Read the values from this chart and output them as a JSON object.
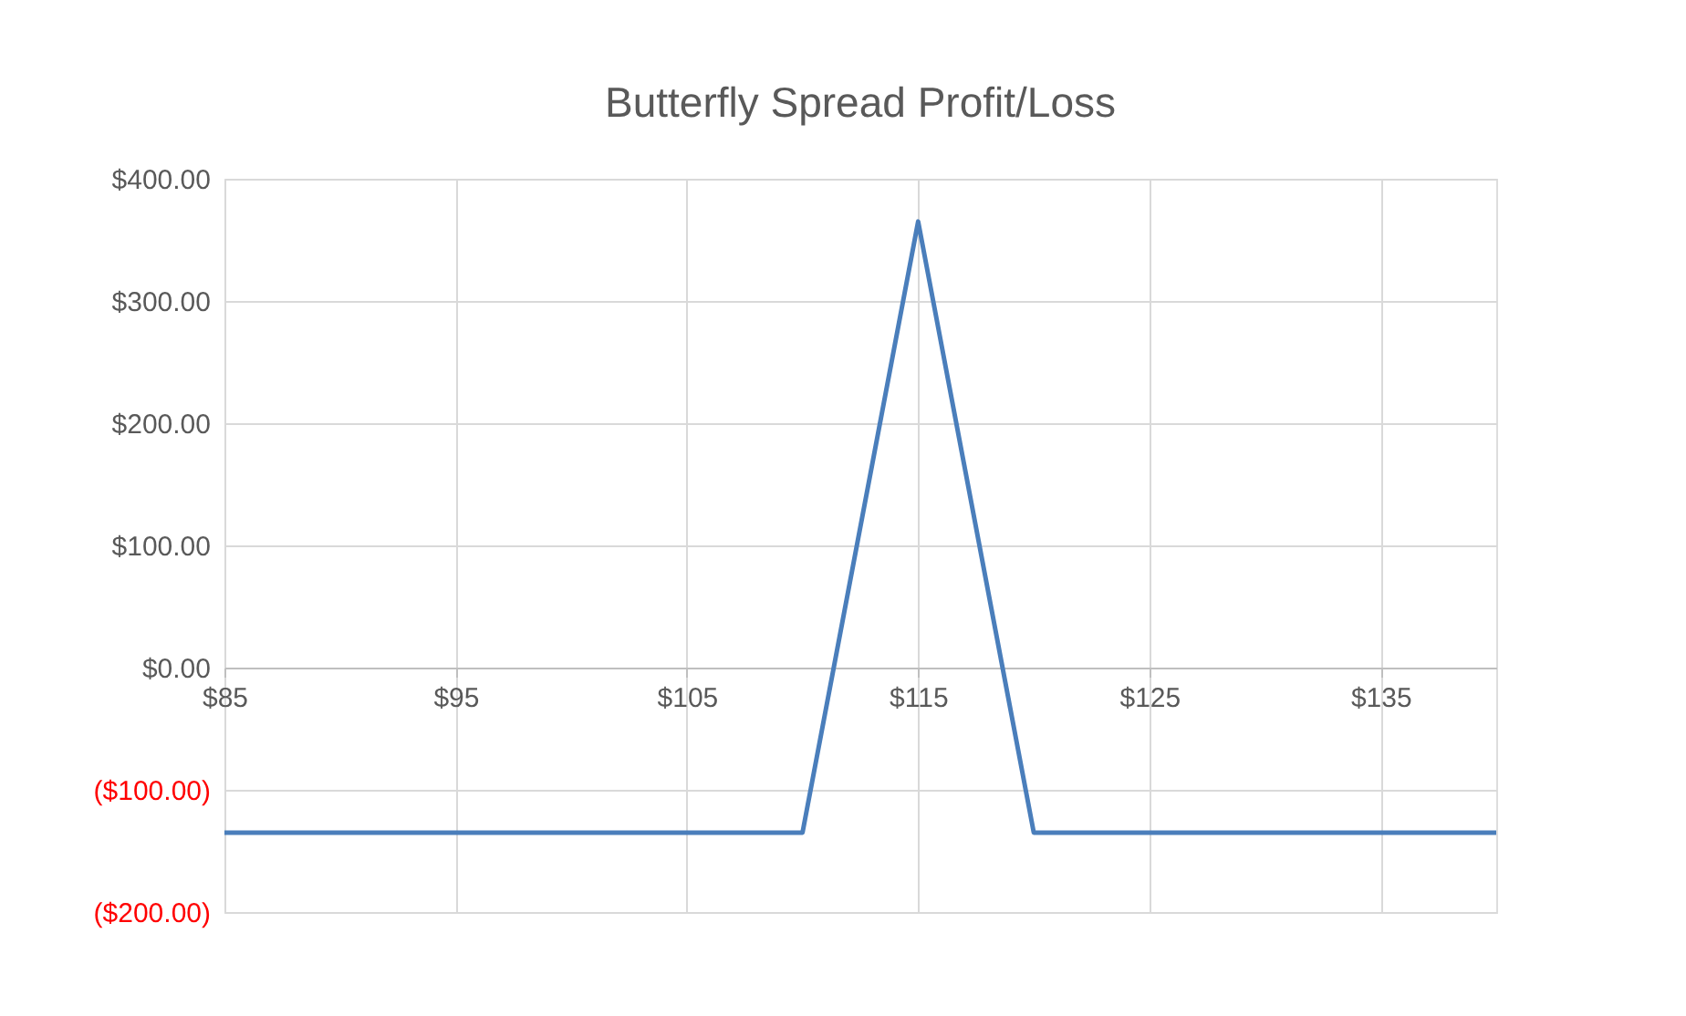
{
  "chart_data": {
    "type": "line",
    "title": "Butterfly Spread Profit/Loss",
    "x": [
      85,
      110,
      115,
      120,
      140
    ],
    "series": [
      {
        "color": "#4a7ebb",
        "values": [
          -135,
          -135,
          365,
          -135,
          -135
        ]
      }
    ],
    "xlim": [
      85,
      140
    ],
    "xticks": [
      {
        "value": 85,
        "label": "$85"
      },
      {
        "value": 95,
        "label": "$95"
      },
      {
        "value": 105,
        "label": "$105"
      },
      {
        "value": 115,
        "label": "$115"
      },
      {
        "value": 125,
        "label": "$125"
      },
      {
        "value": 135,
        "label": "$135"
      }
    ],
    "ylim": [
      -200,
      400
    ],
    "yticks": [
      {
        "value": -200,
        "label": "($200.00)"
      },
      {
        "value": -100,
        "label": "($100.00)"
      },
      {
        "value": 0,
        "label": "$0.00"
      },
      {
        "value": 100,
        "label": "$100.00"
      },
      {
        "value": 200,
        "label": "$200.00"
      },
      {
        "value": 300,
        "label": "$300.00"
      },
      {
        "value": 400,
        "label": "$400.00"
      }
    ],
    "grid": true,
    "marker": "none",
    "line_style": "solid"
  }
}
